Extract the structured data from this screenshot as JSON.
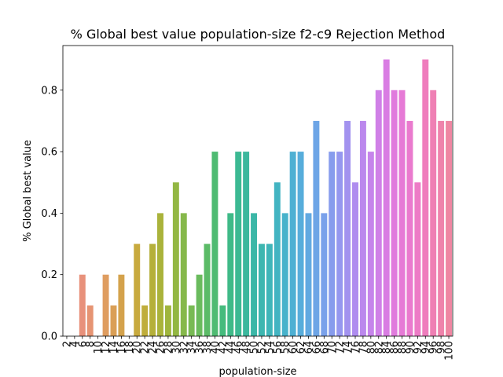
{
  "chart_data": {
    "type": "bar",
    "title": "% Global best value population-size f2-c9 Rejection Method",
    "xlabel": "population-size",
    "ylabel": "% Global best value",
    "categories": [
      "2",
      "4",
      "6",
      "8",
      "10",
      "12",
      "14",
      "16",
      "18",
      "20",
      "22",
      "24",
      "26",
      "28",
      "30",
      "32",
      "34",
      "36",
      "38",
      "40",
      "42",
      "44",
      "46",
      "48",
      "50",
      "52",
      "54",
      "56",
      "58",
      "60",
      "62",
      "64",
      "66",
      "68",
      "70",
      "72",
      "74",
      "76",
      "78",
      "80",
      "82",
      "84",
      "86",
      "88",
      "90",
      "92",
      "94",
      "96",
      "98",
      "100"
    ],
    "values": [
      0.0,
      0.0,
      0.2,
      0.1,
      0.0,
      0.2,
      0.1,
      0.2,
      0.0,
      0.3,
      0.1,
      0.3,
      0.4,
      0.1,
      0.5,
      0.4,
      0.1,
      0.2,
      0.3,
      0.6,
      0.1,
      0.4,
      0.6,
      0.6,
      0.4,
      0.3,
      0.3,
      0.5,
      0.4,
      0.6,
      0.6,
      0.4,
      0.7,
      0.4,
      0.6,
      0.6,
      0.7,
      0.5,
      0.7,
      0.6,
      0.8,
      0.9,
      0.8,
      0.8,
      0.7,
      0.5,
      0.9,
      0.8,
      0.7,
      0.7
    ],
    "colors": [
      "#e98a8a",
      "#e98c83",
      "#e8917b",
      "#e69473",
      "#e3986a",
      "#df9d60",
      "#da9f56",
      "#d4a24c",
      "#cea643",
      "#c8aa3e",
      "#bfad3b",
      "#b5b03a",
      "#aab33b",
      "#9fb53d",
      "#93b743",
      "#86b84b",
      "#78ba54",
      "#6abb5d",
      "#5bbb67",
      "#4fbb72",
      "#45bb7d",
      "#3fba88",
      "#3cb993",
      "#3bb89d",
      "#3bb7a7",
      "#3db6b0",
      "#3fb5b9",
      "#42b4c2",
      "#47b2cb",
      "#4eb0d3",
      "#57addb",
      "#61a9e1",
      "#6da5e6",
      "#7aa1ea",
      "#879ced",
      "#9597ef",
      "#a292ef",
      "#af8def",
      "#bb88ed",
      "#c684eb",
      "#d080e7",
      "#d97de3",
      "#e07bdd",
      "#e67ad6",
      "#ea7ace",
      "#ed7bc6",
      "#ef7dbd",
      "#ef80b4",
      "#ef83ab",
      "#ef86a2"
    ],
    "ylim": [
      0,
      0.945
    ],
    "yticks": [
      0.0,
      0.2,
      0.4,
      0.6,
      0.8
    ],
    "ytick_labels": [
      "0.0",
      "0.2",
      "0.4",
      "0.6",
      "0.8"
    ],
    "grid": false,
    "legend": "none"
  }
}
